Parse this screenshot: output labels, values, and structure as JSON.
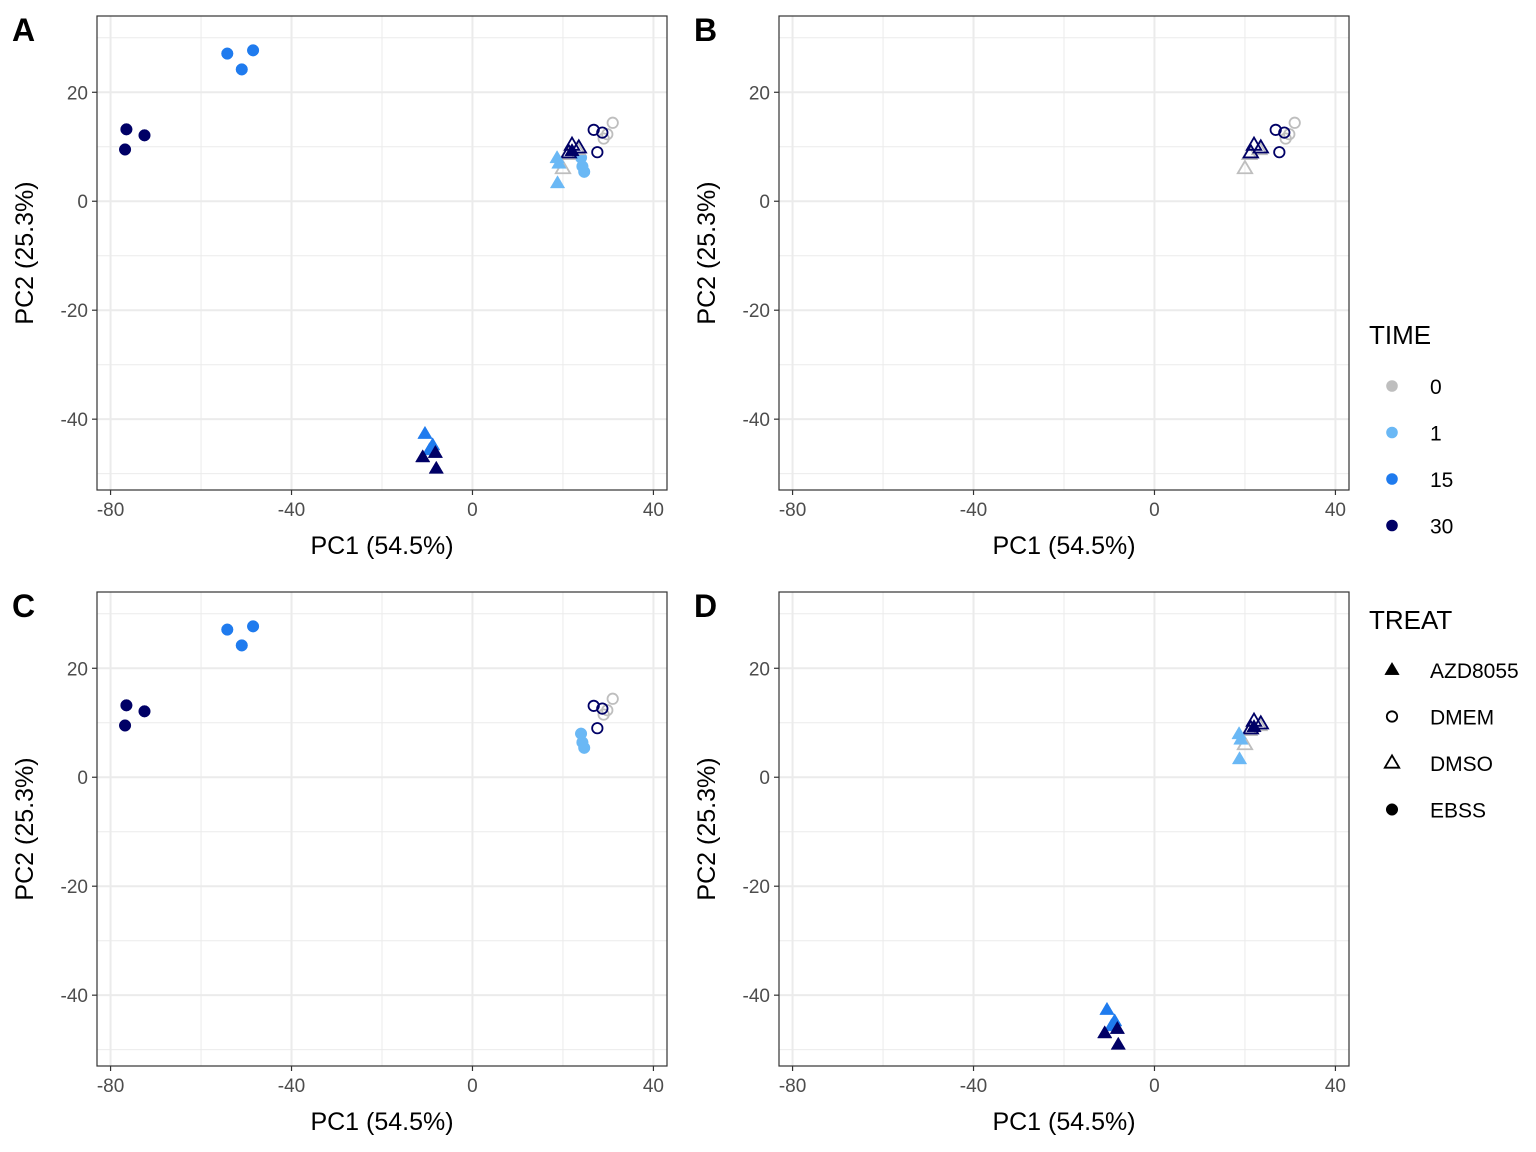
{
  "colors": {
    "0": "#bebebe",
    "1": "#6ab8f5",
    "15": "#1f7bee",
    "30": "#000066"
  },
  "shape_glyphs": {
    "AZD8055": "filled-triangle",
    "DMEM": "open-circle",
    "DMSO": "open-triangle",
    "EBSS": "filled-circle"
  },
  "legend": {
    "time": {
      "title": "TIME",
      "items": [
        "0",
        "1",
        "15",
        "30"
      ]
    },
    "treat": {
      "title": "TREAT",
      "items": [
        "AZD8055",
        "DMEM",
        "DMSO",
        "EBSS"
      ]
    }
  },
  "chart_data": [
    {
      "panel": "A",
      "type": "scatter",
      "xlabel": "PC1 (54.5%)",
      "ylabel": "PC2 (25.3%)",
      "xlim": [
        -83,
        43
      ],
      "ylim": [
        -53,
        34
      ],
      "xticks": [
        -80,
        -40,
        0,
        40
      ],
      "yticks": [
        -40,
        -20,
        0,
        20
      ],
      "grid": true,
      "filter": [
        "AZD8055",
        "DMEM",
        "DMSO",
        "EBSS"
      ]
    },
    {
      "panel": "B",
      "type": "scatter",
      "xlabel": "PC1 (54.5%)",
      "ylabel": "PC2 (25.3%)",
      "xlim": [
        -83,
        43
      ],
      "ylim": [
        -53,
        34
      ],
      "xticks": [
        -80,
        -40,
        0,
        40
      ],
      "yticks": [
        -40,
        -20,
        0,
        20
      ],
      "grid": true,
      "filter": [
        "DMEM",
        "DMSO"
      ]
    },
    {
      "panel": "C",
      "type": "scatter",
      "xlabel": "PC1 (54.5%)",
      "ylabel": "PC2 (25.3%)",
      "xlim": [
        -83,
        43
      ],
      "ylim": [
        -53,
        34
      ],
      "xticks": [
        -80,
        -40,
        0,
        40
      ],
      "yticks": [
        -40,
        -20,
        0,
        20
      ],
      "grid": true,
      "filter": [
        "DMEM",
        "EBSS"
      ]
    },
    {
      "panel": "D",
      "type": "scatter",
      "xlabel": "PC1 (54.5%)",
      "ylabel": "PC2 (25.3%)",
      "xlim": [
        -83,
        43
      ],
      "ylim": [
        -53,
        34
      ],
      "xticks": [
        -80,
        -40,
        0,
        40
      ],
      "yticks": [
        -40,
        -20,
        0,
        20
      ],
      "grid": true,
      "filter": [
        "AZD8055",
        "DMSO"
      ]
    }
  ],
  "points": [
    {
      "x": -76.5,
      "y": 13.2,
      "time": "30",
      "treat": "EBSS"
    },
    {
      "x": -76.8,
      "y": 9.5,
      "time": "30",
      "treat": "EBSS"
    },
    {
      "x": -72.5,
      "y": 12.1,
      "time": "30",
      "treat": "EBSS"
    },
    {
      "x": -54.2,
      "y": 27.1,
      "time": "15",
      "treat": "EBSS"
    },
    {
      "x": -51.0,
      "y": 24.2,
      "time": "15",
      "treat": "EBSS"
    },
    {
      "x": -48.5,
      "y": 27.7,
      "time": "15",
      "treat": "EBSS"
    },
    {
      "x": 24.0,
      "y": 8.0,
      "time": "1",
      "treat": "EBSS"
    },
    {
      "x": 24.3,
      "y": 6.4,
      "time": "1",
      "treat": "EBSS"
    },
    {
      "x": 24.7,
      "y": 5.4,
      "time": "1",
      "treat": "EBSS"
    },
    {
      "x": 31.0,
      "y": 14.4,
      "time": "0",
      "treat": "DMEM"
    },
    {
      "x": 29.8,
      "y": 12.3,
      "time": "0",
      "treat": "DMEM"
    },
    {
      "x": 29.0,
      "y": 11.5,
      "time": "0",
      "treat": "DMEM"
    },
    {
      "x": 26.8,
      "y": 13.1,
      "time": "30",
      "treat": "DMEM"
    },
    {
      "x": 28.7,
      "y": 12.6,
      "time": "30",
      "treat": "DMEM"
    },
    {
      "x": 27.6,
      "y": 9.0,
      "time": "30",
      "treat": "DMEM"
    },
    {
      "x": 20.0,
      "y": 6.0,
      "time": "0",
      "treat": "DMSO"
    },
    {
      "x": 21.0,
      "y": 8.6,
      "time": "0",
      "treat": "DMSO"
    },
    {
      "x": 23.2,
      "y": 9.5,
      "time": "0",
      "treat": "DMSO"
    },
    {
      "x": 22.0,
      "y": 10.3,
      "time": "30",
      "treat": "DMSO"
    },
    {
      "x": 23.5,
      "y": 9.8,
      "time": "30",
      "treat": "DMSO"
    },
    {
      "x": 21.3,
      "y": 8.9,
      "time": "30",
      "treat": "DMSO"
    },
    {
      "x": 18.7,
      "y": 7.9,
      "time": "1",
      "treat": "AZD8055"
    },
    {
      "x": 19.1,
      "y": 6.9,
      "time": "1",
      "treat": "AZD8055"
    },
    {
      "x": 18.8,
      "y": 3.3,
      "time": "1",
      "treat": "AZD8055"
    },
    {
      "x": 22.0,
      "y": 9.2,
      "time": "30",
      "treat": "AZD8055"
    },
    {
      "x": -10.5,
      "y": -42.7,
      "time": "15",
      "treat": "AZD8055"
    },
    {
      "x": -9.5,
      "y": -45.7,
      "time": "15",
      "treat": "AZD8055"
    },
    {
      "x": -8.8,
      "y": -44.8,
      "time": "15",
      "treat": "AZD8055"
    },
    {
      "x": -11.0,
      "y": -47.0,
      "time": "30",
      "treat": "AZD8055"
    },
    {
      "x": -8.2,
      "y": -46.2,
      "time": "30",
      "treat": "AZD8055"
    },
    {
      "x": -8.0,
      "y": -49.1,
      "time": "30",
      "treat": "AZD8055"
    }
  ]
}
